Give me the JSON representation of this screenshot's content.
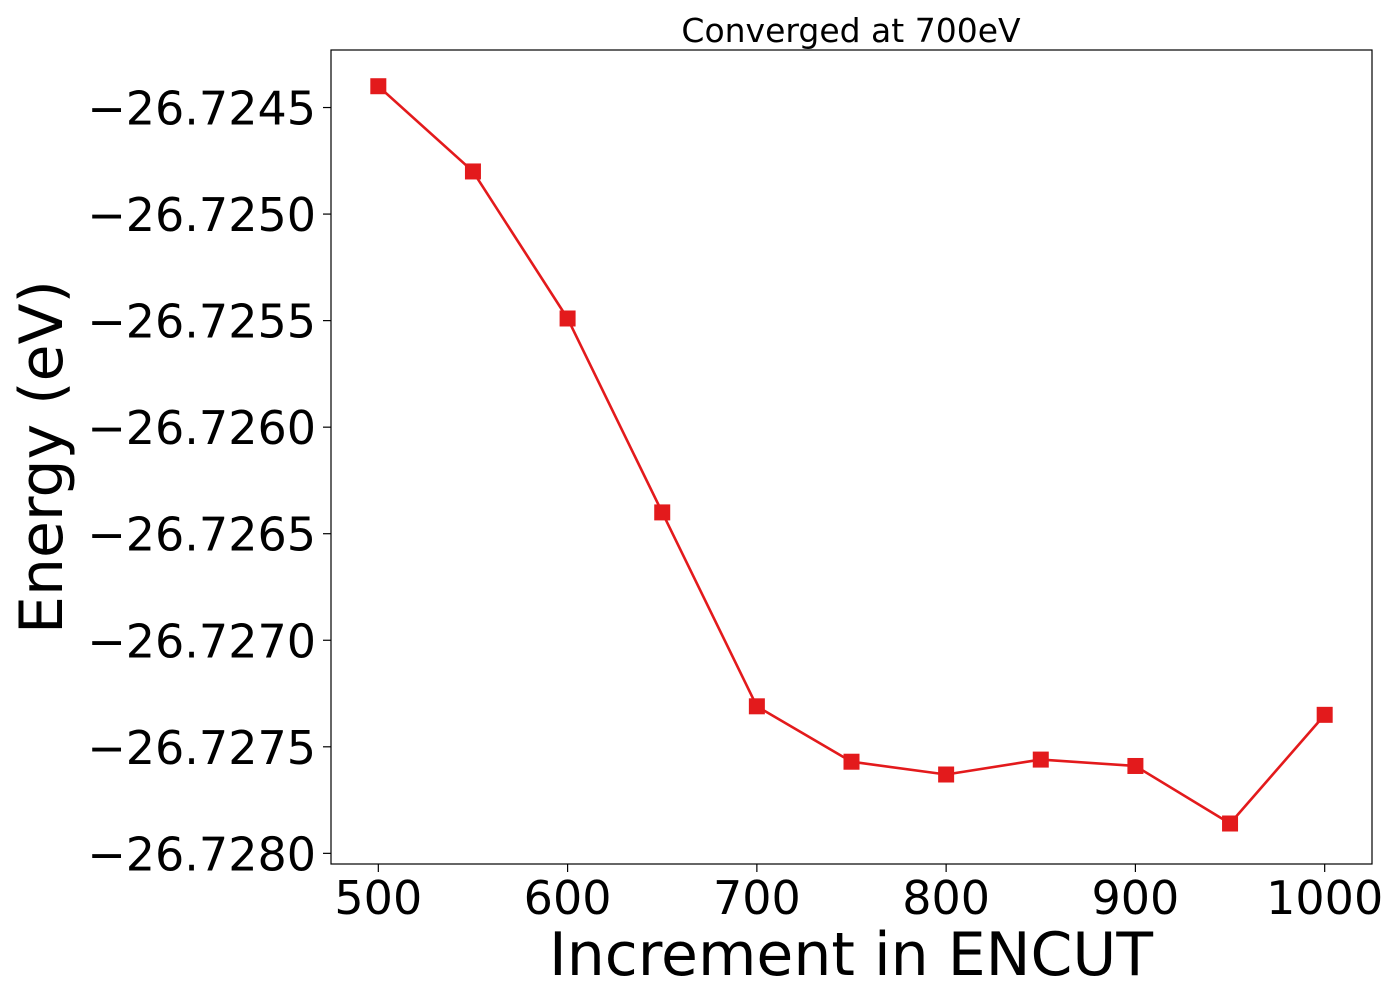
{
  "chart_data": {
    "type": "line",
    "title": "Converged at 700eV",
    "xlabel": "Increment in ENCUT",
    "ylabel": "Energy (eV)",
    "x": [
      500,
      550,
      600,
      650,
      700,
      750,
      800,
      850,
      900,
      950,
      1000
    ],
    "series": [
      {
        "values": [
          -26.7244,
          -26.7248,
          -26.72549,
          -26.7264,
          -26.72731,
          -26.72757,
          -26.72763,
          -26.72756,
          -26.72759,
          -26.72786,
          -26.72735
        ],
        "color": "#e31a1c",
        "marker": "square"
      }
    ],
    "xticks": [
      500,
      600,
      700,
      800,
      900,
      1000
    ],
    "xtick_labels": [
      "500",
      "600",
      "700",
      "800",
      "900",
      "1000"
    ],
    "yticks": [
      -26.7245,
      -26.725,
      -26.7255,
      -26.726,
      -26.7265,
      -26.727,
      -26.7275,
      -26.728
    ],
    "ytick_labels": [
      "−26.7245",
      "−26.7250",
      "−26.7255",
      "−26.7260",
      "−26.7265",
      "−26.7270",
      "−26.7275",
      "−26.7280"
    ],
    "xlim": [
      475,
      1025
    ],
    "ylim": [
      -26.72805,
      -26.72423
    ],
    "grid": false,
    "legend": "none"
  }
}
